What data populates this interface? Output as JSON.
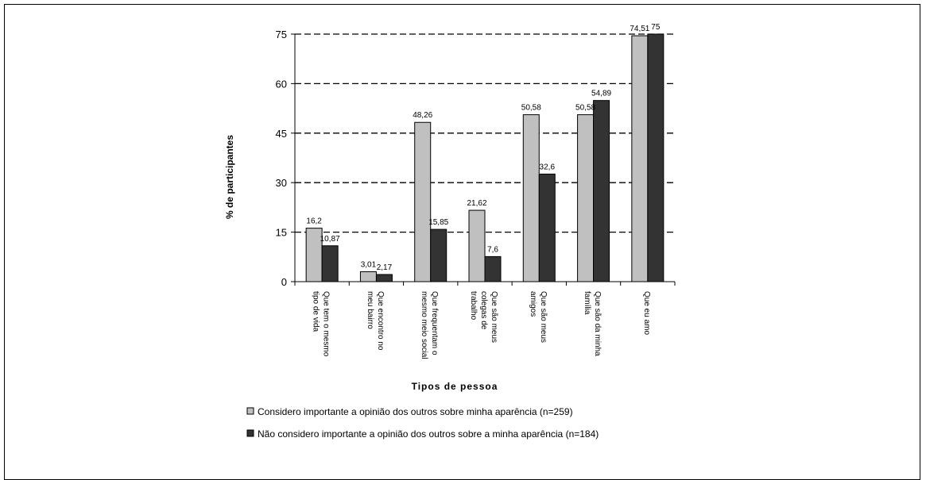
{
  "chart_data": {
    "type": "bar",
    "ylabel": "% de participantes",
    "xlabel": "Tipos de pessoa",
    "ylim": [
      0,
      75
    ],
    "yticks": [
      0,
      15,
      30,
      45,
      60,
      75
    ],
    "grid": "horizontal-dashed",
    "legend_position": "bottom",
    "categories": [
      [
        "Que tem o mesmo",
        "tipo de vida"
      ],
      [
        "Que encontro no",
        "meu bairro"
      ],
      [
        "Que frequentam o",
        "mesmo meio social"
      ],
      [
        "Que são meus",
        "colegas de",
        "trabalho"
      ],
      [
        "Que são meus",
        "amigos"
      ],
      [
        "Que são da minha",
        "família"
      ],
      [
        "Que eu amo"
      ]
    ],
    "series": [
      {
        "name": "Considero importante a opinião dos outros sobre minha aparência (n=259)",
        "color": "#c0c0c0",
        "values": [
          16.2,
          3.01,
          48.26,
          21.62,
          50.58,
          50.58,
          74.51
        ],
        "labels": [
          "16,2",
          "3,01",
          "48,26",
          "21,62",
          "50,58",
          "50,58",
          "74,51"
        ]
      },
      {
        "name": "Não considero importante a opinião dos outros sobre a minha aparência (n=184)",
        "color": "#333333",
        "values": [
          10.87,
          2.17,
          15.85,
          7.6,
          32.6,
          54.89,
          75
        ],
        "labels": [
          "10,87",
          "2,17",
          "15,85",
          "7,6",
          "32,6",
          "54,89",
          "75"
        ]
      }
    ]
  }
}
